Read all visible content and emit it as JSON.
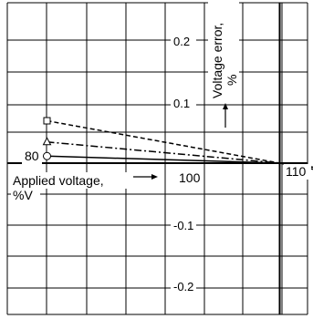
{
  "chart_data": {
    "type": "line",
    "xlabel": "Applied voltage, %V",
    "ylabel": "Voltage error, %",
    "x_ticks": [
      "80",
      "100",
      "110"
    ],
    "y_ticks": [
      "0.2",
      "0.1",
      "-0.1",
      "-0.2"
    ],
    "xlim": [
      70,
      115
    ],
    "ylim": [
      -0.25,
      0.3
    ],
    "grid": true,
    "series": [
      {
        "x": [
          80,
          100,
          110
        ],
        "y": [
          0.06,
          0.0,
          -0.01
        ],
        "line": "dashed",
        "marker": "square"
      },
      {
        "x": [
          80,
          100,
          110
        ],
        "y": [
          0.03,
          0.0,
          -0.02
        ],
        "line": "dashdot",
        "marker": "triangle"
      },
      {
        "x": [
          80,
          100,
          110
        ],
        "y": [
          0.01,
          0.0,
          -0.03
        ],
        "line": "solid",
        "marker": "circle"
      }
    ]
  }
}
